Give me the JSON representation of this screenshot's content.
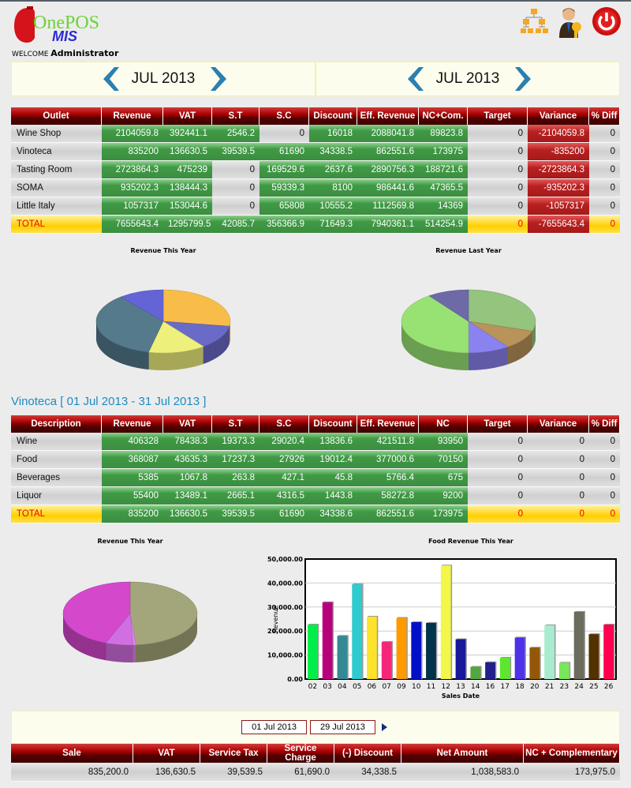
{
  "header": {
    "logo_text": "OnePOS",
    "logo_sub": "MIS",
    "welcome_label": "WELCOME",
    "user": "Administrator",
    "icons": [
      "hierarchy-icon",
      "user-key-icon",
      "power-icon"
    ]
  },
  "month_nav": [
    {
      "label": "JUL 2013"
    },
    {
      "label": "JUL 2013"
    }
  ],
  "outlet_table": {
    "columns": [
      "Outlet",
      "Revenue",
      "VAT",
      "S.T",
      "S.C",
      "Discount",
      "Eff. Revenue",
      "NC+Com.",
      "Target",
      "Variance",
      "% Diff"
    ],
    "rows": [
      [
        "Wine Shop",
        "2104059.8",
        "392441.1",
        "2546.2",
        "0",
        "16018",
        "2088041.8",
        "89823.8",
        "0",
        "-2104059.8",
        "0"
      ],
      [
        "Vinoteca",
        "835200",
        "136630.5",
        "39539.5",
        "61690",
        "34338.5",
        "862551.6",
        "173975",
        "0",
        "-835200",
        "0"
      ],
      [
        "Tasting Room",
        "2723864.3",
        "475239",
        "0",
        "169529.6",
        "2637.6",
        "2890756.3",
        "188721.6",
        "0",
        "-2723864.3",
        "0"
      ],
      [
        "SOMA",
        "935202.3",
        "138444.3",
        "0",
        "59339.3",
        "8100",
        "986441.6",
        "47365.5",
        "0",
        "-935202.3",
        "0"
      ],
      [
        "Little Italy",
        "1057317",
        "153044.6",
        "0",
        "65808",
        "10555.2",
        "1112569.8",
        "14369",
        "0",
        "-1057317",
        "0"
      ]
    ],
    "total": [
      "TOTAL",
      "7655643.4",
      "1295799.5",
      "42085.7",
      "356366.9",
      "71649.3",
      "7940361.1",
      "514254.9",
      "0",
      "-7655643.4",
      "0"
    ]
  },
  "pies_top": [
    {
      "title": "Revenue This Year",
      "type": "pie",
      "slices": [
        {
          "value": 2104059.8,
          "color": "#f8bd48"
        },
        {
          "value": 935202.3,
          "color": "#6a6ac8"
        },
        {
          "value": 1057317,
          "color": "#eef07c"
        },
        {
          "value": 2723864.3,
          "color": "#557a8c"
        },
        {
          "value": 835200,
          "color": "#6464d6"
        }
      ]
    },
    {
      "title": "Revenue Last Year",
      "type": "pie",
      "slices": [
        {
          "value": 30,
          "color": "#94c47e"
        },
        {
          "value": 10,
          "color": "#b8935a"
        },
        {
          "value": 10,
          "color": "#8a82ee"
        },
        {
          "value": 40,
          "color": "#98e274"
        },
        {
          "value": 10,
          "color": "#6e6aa8"
        }
      ]
    }
  ],
  "section_title": "Vinoteca [ 01 Jul 2013 - 31 Jul 2013 ]",
  "desc_table": {
    "columns": [
      "Description",
      "Revenue",
      "VAT",
      "S.T",
      "S.C",
      "Discount",
      "Eff. Revenue",
      "NC",
      "Target",
      "Variance",
      "% Diff"
    ],
    "rows": [
      [
        "Wine",
        "406328",
        "78438.3",
        "19373.3",
        "29020.4",
        "13836.6",
        "421511.8",
        "93950",
        "0",
        "0",
        "0"
      ],
      [
        "Food",
        "368087",
        "43635.3",
        "17237.3",
        "27926",
        "19012.4",
        "377000.6",
        "70150",
        "0",
        "0",
        "0"
      ],
      [
        "Beverages",
        "5385",
        "1067.8",
        "263.8",
        "427.1",
        "45.8",
        "5766.4",
        "675",
        "0",
        "0",
        "0"
      ],
      [
        "Liquor",
        "55400",
        "13489.1",
        "2665.1",
        "4316.5",
        "1443.8",
        "58272.8",
        "9200",
        "0",
        "0",
        "0"
      ]
    ],
    "total": [
      "TOTAL",
      "835200",
      "136630.5",
      "39539.5",
      "61690",
      "34338.6",
      "862551.6",
      "173975",
      "0",
      "0",
      "0"
    ]
  },
  "pie_bottom": {
    "title": "Revenue This Year",
    "type": "pie",
    "slices": [
      {
        "value": 406328,
        "color": "#a3a67a"
      },
      {
        "value": 5385,
        "color": "#e08ae8"
      },
      {
        "value": 55400,
        "color": "#d070e0"
      },
      {
        "value": 368087,
        "color": "#d448cc"
      }
    ]
  },
  "chart_data": {
    "type": "bar",
    "title": "Food Revenue This Year",
    "xlabel": "Sales Date",
    "ylabel": "Revenue",
    "ylim": [
      0,
      50000
    ],
    "yticks": [
      "0.00",
      "10,000.00",
      "20,000.00",
      "30,000.00",
      "40,000.00",
      "50,000.00"
    ],
    "grid": true,
    "categories": [
      "02",
      "03",
      "04",
      "05",
      "06",
      "07",
      "09",
      "10",
      "11",
      "12",
      "13",
      "14",
      "16",
      "17",
      "18",
      "20",
      "21",
      "23",
      "24",
      "25",
      "26"
    ],
    "values": [
      22700,
      32000,
      18000,
      39500,
      26000,
      15500,
      25500,
      23700,
      23400,
      47300,
      16600,
      5100,
      7000,
      8900,
      17300,
      13100,
      22400,
      6800,
      28000,
      18700,
      22700
    ],
    "colors": [
      "#00ee4a",
      "#b8007c",
      "#338a94",
      "#2ecbcf",
      "#fde32a",
      "#f5267a",
      "#ff9a00",
      "#0010c8",
      "#01344c",
      "#f2f74a",
      "#17189a",
      "#52a83e",
      "#221f8c",
      "#5ee62e",
      "#4d32e8",
      "#935707",
      "#a8ecd0",
      "#78e85a",
      "#6b6b5e",
      "#533200",
      "#ff0050"
    ]
  },
  "date_range": {
    "from": "01 Jul 2013",
    "to": "29 Jul 2013"
  },
  "summary_table": {
    "columns": [
      "Sale",
      "VAT",
      "Service Tax",
      "Service Charge",
      "(-) Discount",
      "Net Amount",
      "NC + Complementary"
    ],
    "values": [
      "835,200.0",
      "136,630.5",
      "39,539.5",
      "61,690.0",
      "34,338.5",
      "1,038,583.0",
      "173,975.0"
    ]
  }
}
